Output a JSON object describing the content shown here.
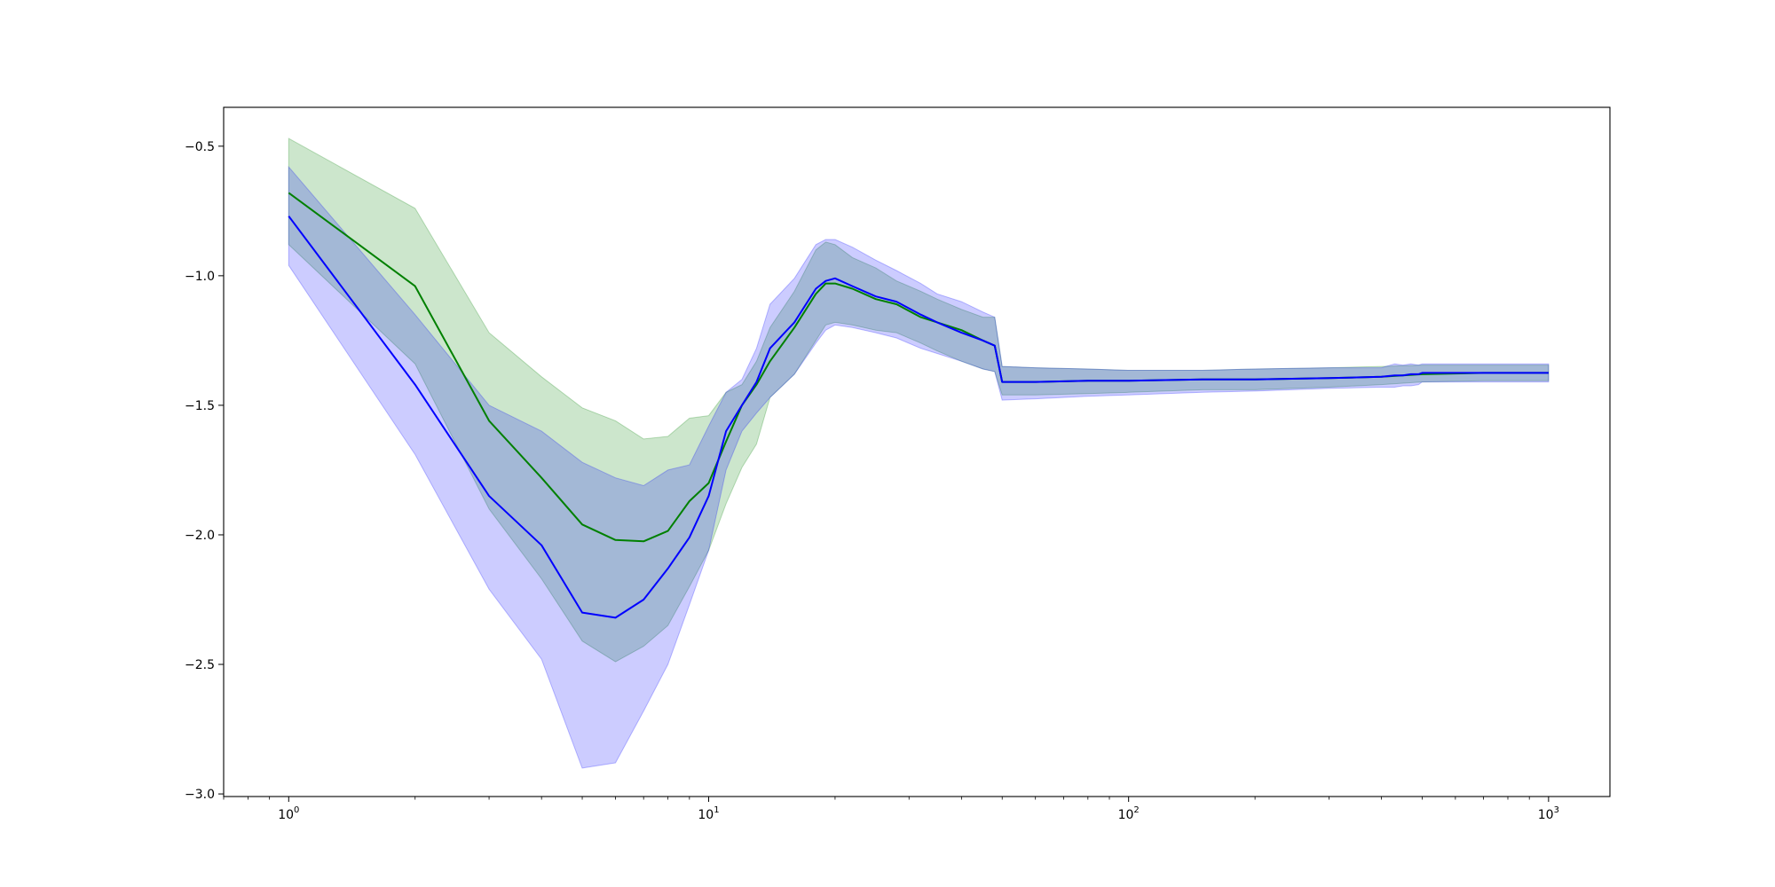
{
  "chart_data": {
    "type": "line",
    "title": "",
    "xlabel": "",
    "ylabel": "",
    "xscale": "log",
    "xlim": [
      0.7,
      1400
    ],
    "ylim": [
      -3.01,
      -0.35
    ],
    "grid": false,
    "legend": "none",
    "y_ticks": [
      -3.0,
      -2.5,
      -2.0,
      -1.5,
      -1.0,
      -0.5
    ],
    "y_tick_labels": [
      "−3.0",
      "−2.5",
      "−2.0",
      "−1.5",
      "−1.0",
      "−0.5"
    ],
    "x_ticks": [
      1,
      10,
      100,
      1000
    ],
    "x_tick_labels": [
      {
        "base": "10",
        "exp": "0"
      },
      {
        "base": "10",
        "exp": "1"
      },
      {
        "base": "10",
        "exp": "2"
      },
      {
        "base": "10",
        "exp": "3"
      }
    ],
    "series": [
      {
        "color": "#008000",
        "band_color": "#008000",
        "band_opacity": 0.2,
        "x": [
          1,
          2,
          3,
          4,
          5,
          6,
          7,
          8,
          9,
          10,
          11,
          12,
          13,
          14,
          16,
          18,
          19,
          20,
          22,
          25,
          28,
          32,
          35,
          40,
          45,
          48,
          50,
          60,
          80,
          100,
          150,
          200,
          300,
          400,
          500,
          700,
          1000
        ],
        "y": [
          -0.68,
          -1.04,
          -1.56,
          -1.78,
          -1.96,
          -2.02,
          -2.025,
          -1.985,
          -1.87,
          -1.8,
          -1.64,
          -1.5,
          -1.42,
          -1.33,
          -1.2,
          -1.07,
          -1.03,
          -1.03,
          -1.05,
          -1.09,
          -1.11,
          -1.16,
          -1.18,
          -1.21,
          -1.25,
          -1.27,
          -1.41,
          -1.41,
          -1.405,
          -1.405,
          -1.4,
          -1.4,
          -1.395,
          -1.39,
          -1.38,
          -1.375,
          -1.375
        ],
        "upper": [
          -0.47,
          -0.74,
          -1.22,
          -1.39,
          -1.51,
          -1.56,
          -1.63,
          -1.62,
          -1.55,
          -1.54,
          -1.45,
          -1.42,
          -1.33,
          -1.2,
          -1.06,
          -0.9,
          -0.87,
          -0.88,
          -0.93,
          -0.97,
          -1.02,
          -1.06,
          -1.09,
          -1.13,
          -1.16,
          -1.16,
          -1.35,
          -1.355,
          -1.36,
          -1.365,
          -1.365,
          -1.36,
          -1.355,
          -1.35,
          -1.345,
          -1.345,
          -1.345
        ],
        "lower": [
          -0.88,
          -1.34,
          -1.9,
          -2.17,
          -2.41,
          -2.49,
          -2.43,
          -2.35,
          -2.2,
          -2.06,
          -1.88,
          -1.74,
          -1.65,
          -1.47,
          -1.38,
          -1.25,
          -1.19,
          -1.18,
          -1.19,
          -1.21,
          -1.22,
          -1.26,
          -1.29,
          -1.33,
          -1.36,
          -1.37,
          -1.46,
          -1.46,
          -1.455,
          -1.45,
          -1.44,
          -1.44,
          -1.43,
          -1.42,
          -1.41,
          -1.405,
          -1.405
        ]
      },
      {
        "color": "#0000ff",
        "band_color": "#0000ff",
        "band_opacity": 0.2,
        "x": [
          1,
          2,
          3,
          4,
          5,
          6,
          7,
          8,
          9,
          10,
          11,
          12,
          13,
          14,
          16,
          18,
          19,
          20,
          22,
          25,
          28,
          32,
          35,
          40,
          45,
          48,
          50,
          60,
          80,
          100,
          150,
          200,
          300,
          400,
          430,
          450,
          470,
          490,
          500,
          700,
          1000
        ],
        "y": [
          -0.77,
          -1.42,
          -1.85,
          -2.04,
          -2.3,
          -2.32,
          -2.25,
          -2.13,
          -2.01,
          -1.85,
          -1.6,
          -1.5,
          -1.41,
          -1.28,
          -1.18,
          -1.05,
          -1.02,
          -1.01,
          -1.04,
          -1.08,
          -1.1,
          -1.15,
          -1.18,
          -1.22,
          -1.25,
          -1.27,
          -1.41,
          -1.41,
          -1.405,
          -1.405,
          -1.4,
          -1.4,
          -1.395,
          -1.39,
          -1.385,
          -1.385,
          -1.38,
          -1.38,
          -1.375,
          -1.375,
          -1.375
        ],
        "upper": [
          -0.58,
          -1.15,
          -1.5,
          -1.6,
          -1.72,
          -1.78,
          -1.81,
          -1.75,
          -1.73,
          -1.58,
          -1.45,
          -1.4,
          -1.28,
          -1.11,
          -1.01,
          -0.88,
          -0.86,
          -0.86,
          -0.89,
          -0.94,
          -0.98,
          -1.03,
          -1.07,
          -1.1,
          -1.14,
          -1.16,
          -1.35,
          -1.355,
          -1.36,
          -1.365,
          -1.365,
          -1.36,
          -1.355,
          -1.355,
          -1.34,
          -1.345,
          -1.34,
          -1.345,
          -1.34,
          -1.34,
          -1.34
        ],
        "lower": [
          -0.96,
          -1.69,
          -2.21,
          -2.48,
          -2.9,
          -2.88,
          -2.68,
          -2.5,
          -2.27,
          -2.06,
          -1.75,
          -1.6,
          -1.53,
          -1.47,
          -1.38,
          -1.26,
          -1.21,
          -1.19,
          -1.2,
          -1.22,
          -1.24,
          -1.28,
          -1.3,
          -1.33,
          -1.36,
          -1.37,
          -1.48,
          -1.475,
          -1.465,
          -1.46,
          -1.45,
          -1.445,
          -1.435,
          -1.43,
          -1.43,
          -1.425,
          -1.425,
          -1.42,
          -1.41,
          -1.41,
          -1.41
        ]
      }
    ]
  }
}
